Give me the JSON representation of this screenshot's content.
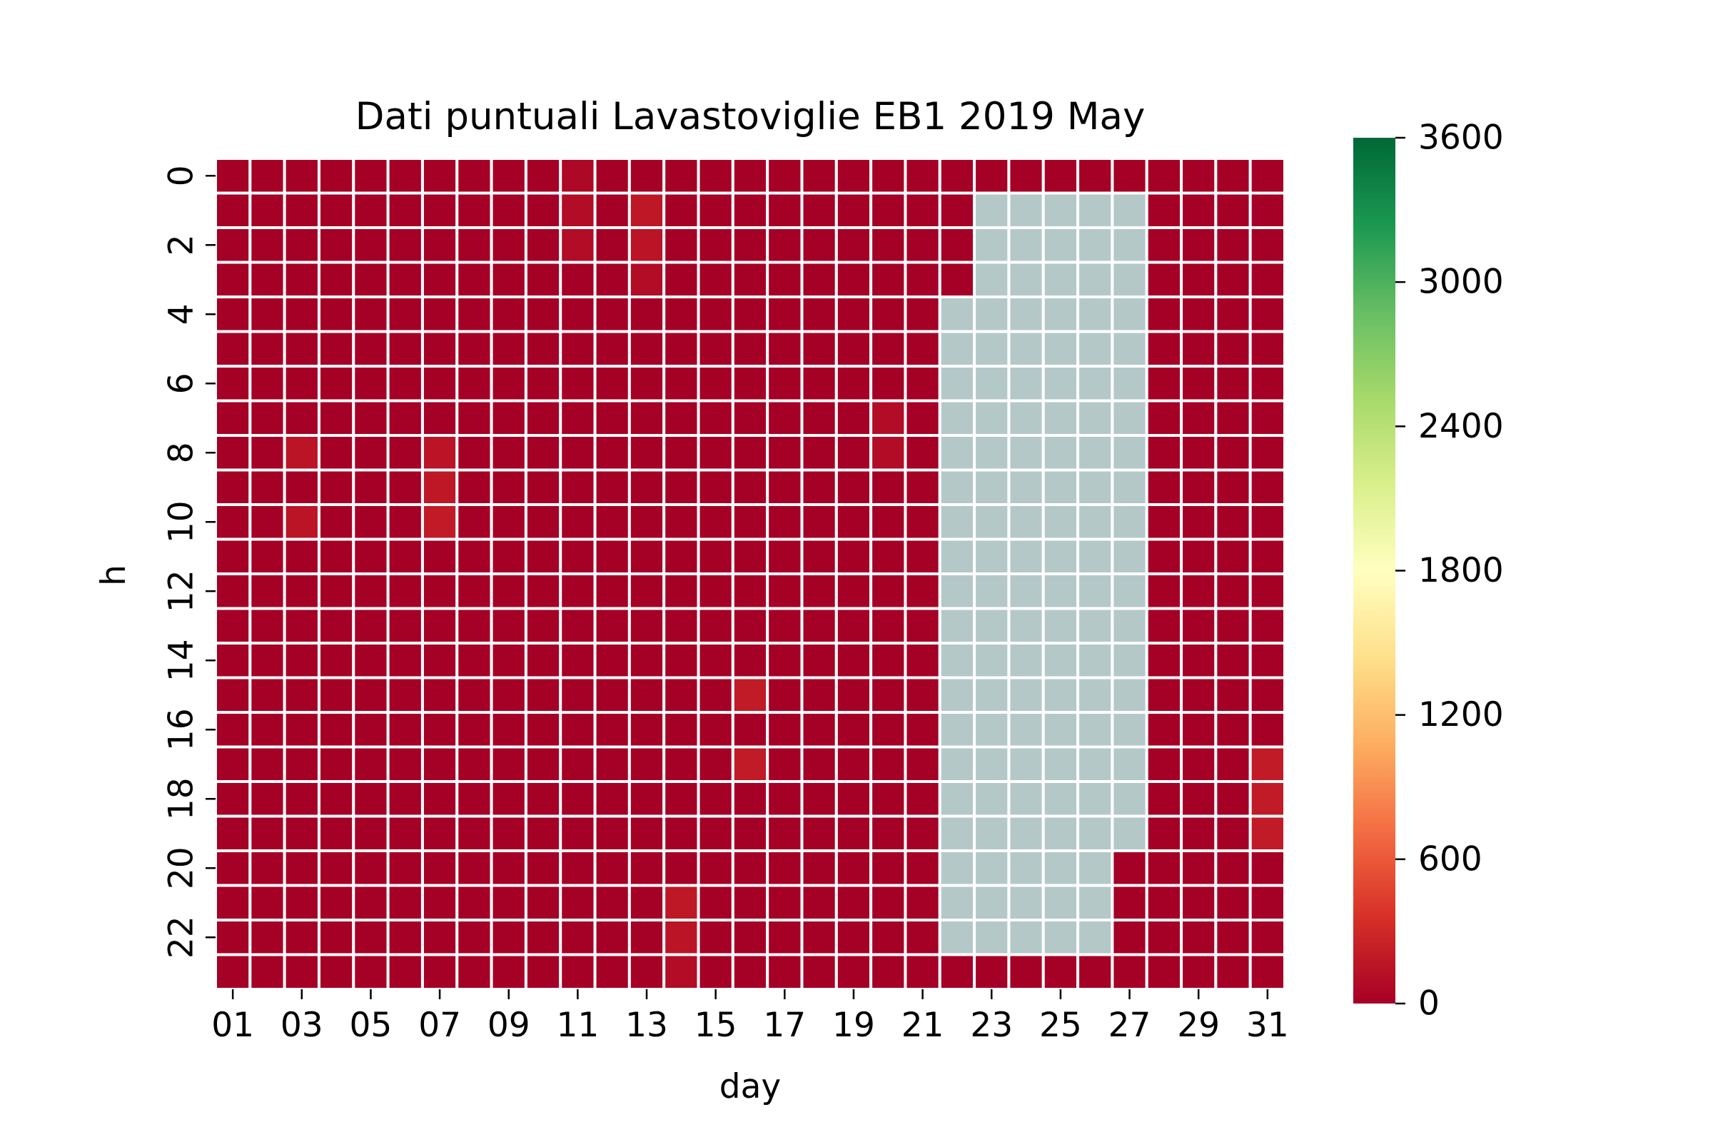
{
  "chart_data": {
    "type": "heatmap",
    "title": "Dati puntuali Lavastoviglie EB1 2019 May",
    "xlabel": "day",
    "ylabel": "h",
    "x_categories": [
      "01",
      "02",
      "03",
      "04",
      "05",
      "06",
      "07",
      "08",
      "09",
      "10",
      "11",
      "12",
      "13",
      "14",
      "15",
      "16",
      "17",
      "18",
      "19",
      "20",
      "21",
      "22",
      "23",
      "24",
      "25",
      "26",
      "27",
      "28",
      "29",
      "30",
      "31"
    ],
    "x_tick_labels": [
      "01",
      "03",
      "05",
      "07",
      "09",
      "11",
      "13",
      "15",
      "17",
      "19",
      "21",
      "23",
      "25",
      "27",
      "29",
      "31"
    ],
    "y_categories": [
      0,
      1,
      2,
      3,
      4,
      5,
      6,
      7,
      8,
      9,
      10,
      11,
      12,
      13,
      14,
      15,
      16,
      17,
      18,
      19,
      20,
      21,
      22,
      23
    ],
    "y_tick_labels": [
      "0",
      "2",
      "4",
      "6",
      "8",
      "10",
      "12",
      "14",
      "16",
      "18",
      "20",
      "22"
    ],
    "colorbar": {
      "min": 0,
      "max": 3600,
      "ticks": [
        "0",
        "600",
        "1200",
        "1800",
        "2400",
        "3000",
        "3600"
      ],
      "colormap": "RdYlGn",
      "stops": [
        "#a50026",
        "#d73027",
        "#f46d43",
        "#fdae61",
        "#fee08b",
        "#ffffbf",
        "#d9ef8b",
        "#a6d96a",
        "#66bd63",
        "#1a9850",
        "#006837"
      ]
    },
    "missing_color": "#b4c8c8",
    "grid_line_color": "#ffffff",
    "default_value": 0,
    "nonzero_values": [
      {
        "day": "11",
        "hour": 0,
        "value": 60
      },
      {
        "day": "11",
        "hour": 1,
        "value": 90
      },
      {
        "day": "11",
        "hour": 2,
        "value": 90
      },
      {
        "day": "13",
        "hour": 1,
        "value": 180
      },
      {
        "day": "13",
        "hour": 2,
        "value": 150
      },
      {
        "day": "13",
        "hour": 3,
        "value": 90
      },
      {
        "day": "20",
        "hour": 7,
        "value": 90
      },
      {
        "day": "20",
        "hour": 8,
        "value": 90
      },
      {
        "day": "03",
        "hour": 8,
        "value": 150
      },
      {
        "day": "03",
        "hour": 10,
        "value": 150
      },
      {
        "day": "07",
        "hour": 8,
        "value": 150
      },
      {
        "day": "07",
        "hour": 9,
        "value": 180
      },
      {
        "day": "07",
        "hour": 10,
        "value": 200
      },
      {
        "day": "16",
        "hour": 15,
        "value": 200
      },
      {
        "day": "16",
        "hour": 17,
        "value": 200
      },
      {
        "day": "31",
        "hour": 17,
        "value": 200
      },
      {
        "day": "31",
        "hour": 18,
        "value": 200
      },
      {
        "day": "31",
        "hour": 19,
        "value": 200
      },
      {
        "day": "14",
        "hour": 21,
        "value": 180
      },
      {
        "day": "14",
        "hour": 22,
        "value": 150
      },
      {
        "day": "14",
        "hour": 23,
        "value": 90
      }
    ],
    "missing_ranges": [
      {
        "day": "22",
        "hour_from": 4,
        "hour_to": 22
      },
      {
        "day": "23",
        "hour_from": 1,
        "hour_to": 22
      },
      {
        "day": "24",
        "hour_from": 1,
        "hour_to": 22
      },
      {
        "day": "25",
        "hour_from": 1,
        "hour_to": 22
      },
      {
        "day": "26",
        "hour_from": 1,
        "hour_to": 22
      },
      {
        "day": "27",
        "hour_from": 1,
        "hour_to": 19
      }
    ]
  }
}
